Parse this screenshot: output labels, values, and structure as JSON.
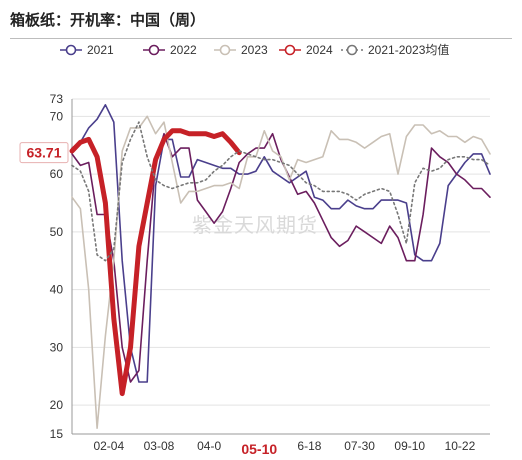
{
  "title": "箱板纸：开机率：中国（周）",
  "watermark": "紫金天风期货",
  "chart_data": {
    "type": "line",
    "title": "箱板纸：开机率：中国（周）",
    "xlabel": "",
    "ylabel": "",
    "x_ticks": [
      "02-04",
      "03-08",
      "04-0",
      "05-10",
      "6-18",
      "07-30",
      "09-10",
      "10-22"
    ],
    "x_highlight": "05-10",
    "y_ticks": [
      15,
      20,
      30,
      40,
      50,
      60,
      70,
      73
    ],
    "ylim": [
      15,
      73
    ],
    "last_value_label": "63.71",
    "grid": true,
    "legend_position": "top",
    "series": [
      {
        "name": "2021",
        "color": "#4a3f8c",
        "dash": false,
        "width": 1.6,
        "values": [
          64.5,
          65.5,
          68,
          69.5,
          72,
          69,
          45,
          30,
          24,
          24,
          58,
          66,
          66,
          59.5,
          59.5,
          62.5,
          62,
          61.5,
          61,
          61,
          60,
          60,
          60.5,
          63,
          60.5,
          59.5,
          58.5,
          59.5,
          60.5,
          56,
          55.5,
          54,
          54,
          55.5,
          54.5,
          54,
          54,
          55.5,
          55.5,
          55.5,
          55,
          46,
          45,
          45,
          48,
          58,
          60,
          62,
          63.5,
          63.5,
          60
        ]
      },
      {
        "name": "2022",
        "color": "#6b1e5e",
        "dash": false,
        "width": 1.6,
        "values": [
          63.5,
          61.5,
          62,
          53,
          53,
          45,
          30,
          24,
          26,
          45,
          62,
          67,
          63,
          64.5,
          64.5,
          55.5,
          53.5,
          51.5,
          53.5,
          57.5,
          62,
          63.5,
          64.5,
          64.5,
          67,
          62.5,
          59.5,
          56.5,
          57,
          55,
          52,
          49,
          47.5,
          48.5,
          51,
          50,
          49,
          48,
          51,
          49,
          45,
          45,
          53,
          64.5,
          63,
          62,
          60,
          59,
          57.5,
          57.5,
          56
        ]
      },
      {
        "name": "2023",
        "color": "#c9c0b5",
        "dash": false,
        "width": 1.6,
        "values": [
          56,
          54,
          40,
          16,
          32,
          45,
          64,
          68,
          68,
          70,
          67,
          69,
          62,
          55,
          57,
          57,
          57.5,
          58,
          58,
          58.5,
          57.5,
          63,
          63,
          67.5,
          64,
          63,
          59,
          62.5,
          62,
          62.5,
          63,
          67.5,
          66,
          66,
          65.5,
          64.5,
          65.5,
          66.5,
          67,
          60,
          66.5,
          68.5,
          68.5,
          67,
          67.5,
          66.5,
          66.5,
          65.5,
          66.5,
          66,
          63.5
        ]
      },
      {
        "name": "2024",
        "color": "#c62127",
        "dash": false,
        "width": 5,
        "values": [
          64,
          65.5,
          66,
          63,
          55,
          35,
          22,
          30,
          47.5,
          55,
          62.5,
          66,
          67.5,
          67.5,
          67,
          67,
          67,
          66.5,
          67,
          65.5,
          63.71
        ]
      },
      {
        "name": "2021-2023均值",
        "color": "#777777",
        "dash": true,
        "width": 1.6,
        "values": [
          61.5,
          60.5,
          57,
          46,
          45,
          47,
          62,
          66,
          69,
          63,
          59,
          58,
          57.5,
          58,
          58.5,
          58.5,
          59,
          60.5,
          61.5,
          63,
          64,
          63.5,
          63,
          62.5,
          62.5,
          62,
          61.5,
          60,
          58.5,
          58,
          57,
          57,
          57,
          56.5,
          55.5,
          56.5,
          57,
          57.5,
          57,
          53,
          48,
          58.5,
          61,
          60.5,
          61,
          62.5,
          63,
          63,
          62.5,
          62.5,
          61.5
        ]
      }
    ]
  }
}
